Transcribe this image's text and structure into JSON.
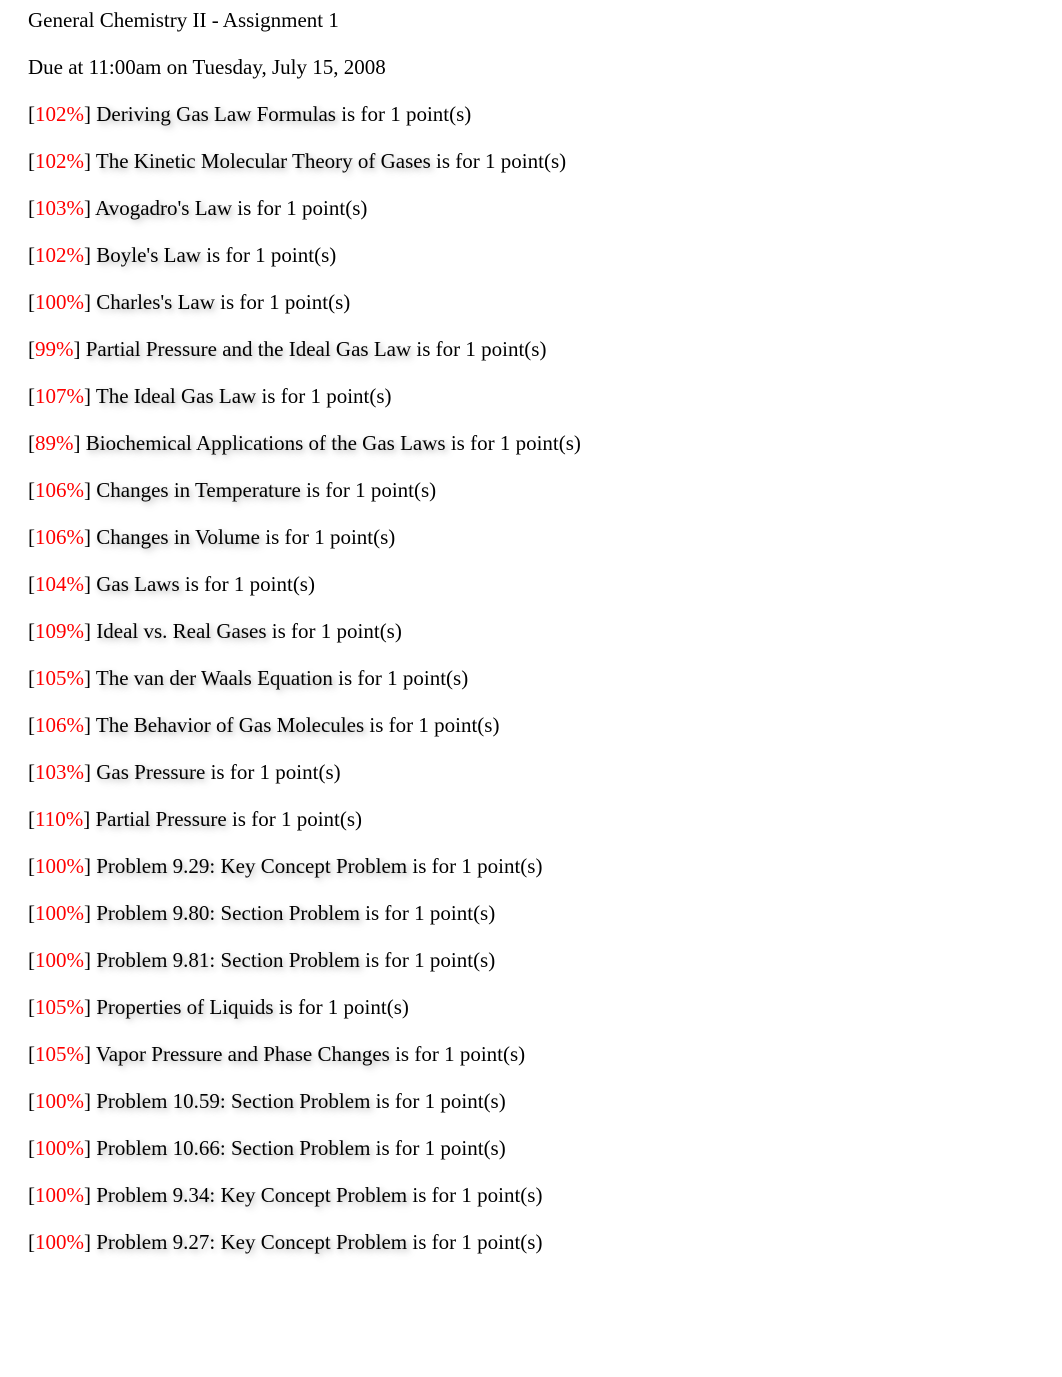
{
  "header": {
    "title": "General Chemistry II - Assignment 1",
    "due": "Due at 11:00am on Tuesday, July 15, 2008"
  },
  "points_suffix": " is for 1 point(s)",
  "items": [
    {
      "percent": "102%",
      "title": "Deriving Gas Law Formulas"
    },
    {
      "percent": "102%",
      "title": "The Kinetic Molecular Theory of Gases"
    },
    {
      "percent": "103%",
      "title": "Avogadro's Law"
    },
    {
      "percent": "102%",
      "title": "Boyle's Law"
    },
    {
      "percent": "100%",
      "title": "Charles's Law"
    },
    {
      "percent": "99%",
      "title": "Partial Pressure and the Ideal Gas Law"
    },
    {
      "percent": "107%",
      "title": "The Ideal Gas Law"
    },
    {
      "percent": "89%",
      "title": "Biochemical Applications of the Gas Laws"
    },
    {
      "percent": "106%",
      "title": "Changes in Temperature"
    },
    {
      "percent": "106%",
      "title": "Changes in Volume"
    },
    {
      "percent": "104%",
      "title": "Gas Laws"
    },
    {
      "percent": "109%",
      "title": "Ideal vs. Real Gases"
    },
    {
      "percent": "105%",
      "title": "The van der Waals Equation"
    },
    {
      "percent": "106%",
      "title": "The Behavior of Gas Molecules"
    },
    {
      "percent": "103%",
      "title": "Gas Pressure"
    },
    {
      "percent": "110%",
      "title": "Partial Pressure"
    },
    {
      "percent": "100%",
      "title": "Problem 9.29: Key Concept Problem"
    },
    {
      "percent": "100%",
      "title": "Problem 9.80: Section Problem"
    },
    {
      "percent": "100%",
      "title": "Problem 9.81: Section Problem"
    },
    {
      "percent": "105%",
      "title": "Properties of Liquids"
    },
    {
      "percent": "105%",
      "title": "Vapor Pressure and Phase Changes"
    },
    {
      "percent": "100%",
      "title": "Problem 10.59: Section Problem"
    },
    {
      "percent": "100%",
      "title": "Problem 10.66: Section Problem"
    },
    {
      "percent": "100%",
      "title": "Problem 9.34: Key Concept Problem"
    },
    {
      "percent": "100%",
      "title": "Problem 9.27: Key Concept Problem"
    }
  ]
}
